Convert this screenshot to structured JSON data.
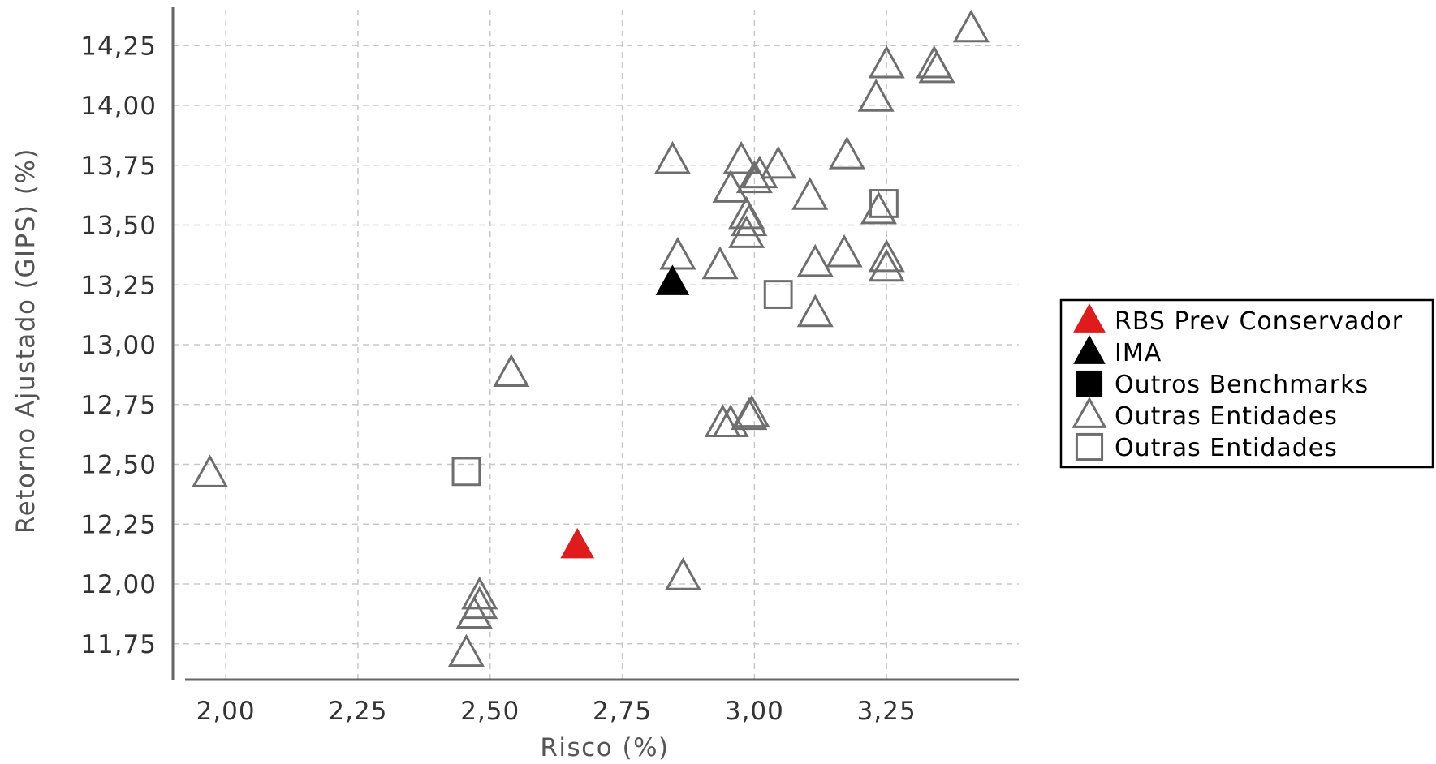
{
  "chart_data": {
    "type": "scatter",
    "xlabel": "Risco (%)",
    "ylabel": "Retorno Ajustado (GIPS) (%)",
    "xlim": [
      1.9,
      3.5
    ],
    "ylim": [
      11.6,
      14.4
    ],
    "x_ticks": [
      2.0,
      2.25,
      2.5,
      2.75,
      3.0,
      3.25
    ],
    "x_tick_labels": [
      "2,00",
      "2,25",
      "2,50",
      "2,75",
      "3,00",
      "3,25"
    ],
    "y_ticks": [
      11.75,
      12.0,
      12.25,
      12.5,
      12.75,
      13.0,
      13.25,
      13.5,
      13.75,
      14.0,
      14.25
    ],
    "y_tick_labels": [
      "11,75",
      "12,00",
      "12,25",
      "12,50",
      "12,75",
      "13,00",
      "13,25",
      "13,50",
      "13,75",
      "14,00",
      "14,25"
    ],
    "grid": true,
    "legend_position": "right",
    "colors": {
      "red": "#e01b1b",
      "black": "#000000",
      "gray": "#6e6e6e"
    },
    "series": [
      {
        "name": "RBS Prev Conservador",
        "marker": "triangle",
        "filled": true,
        "color": "#e01b1b",
        "points": [
          [
            2.665,
            12.16
          ]
        ]
      },
      {
        "name": "IMA",
        "marker": "triangle",
        "filled": true,
        "color": "#000000",
        "points": [
          [
            2.845,
            13.26
          ]
        ]
      },
      {
        "name": "Outros Benchmarks",
        "marker": "square",
        "filled": true,
        "color": "#000000",
        "points": []
      },
      {
        "name": "Outras Entidades",
        "marker": "triangle",
        "filled": false,
        "color": "#6e6e6e",
        "points": [
          [
            1.97,
            12.46
          ],
          [
            2.54,
            12.88
          ],
          [
            2.48,
            11.95
          ],
          [
            2.48,
            11.91
          ],
          [
            2.47,
            11.87
          ],
          [
            2.455,
            11.71
          ],
          [
            2.865,
            12.03
          ],
          [
            2.845,
            13.77
          ],
          [
            2.855,
            13.37
          ],
          [
            2.935,
            13.33
          ],
          [
            2.955,
            13.65
          ],
          [
            2.975,
            13.77
          ],
          [
            2.985,
            13.54
          ],
          [
            2.99,
            13.51
          ],
          [
            2.985,
            13.46
          ],
          [
            3.0,
            13.69
          ],
          [
            3.01,
            13.71
          ],
          [
            3.045,
            13.75
          ],
          [
            3.105,
            13.62
          ],
          [
            3.115,
            13.34
          ],
          [
            3.115,
            13.13
          ],
          [
            3.175,
            13.79
          ],
          [
            3.17,
            13.38
          ],
          [
            3.235,
            13.56
          ],
          [
            3.23,
            14.03
          ],
          [
            3.25,
            14.17
          ],
          [
            3.25,
            13.36
          ],
          [
            3.25,
            13.32
          ],
          [
            3.34,
            14.17
          ],
          [
            3.345,
            14.15
          ],
          [
            3.41,
            14.32
          ],
          [
            2.94,
            12.67
          ],
          [
            2.955,
            12.67
          ],
          [
            2.99,
            12.7
          ],
          [
            2.995,
            12.71
          ]
        ]
      },
      {
        "name": "Outras Entidades",
        "marker": "square",
        "filled": false,
        "color": "#6e6e6e",
        "points": [
          [
            2.455,
            12.47
          ],
          [
            3.045,
            13.21
          ],
          [
            3.245,
            13.59
          ]
        ]
      }
    ]
  }
}
